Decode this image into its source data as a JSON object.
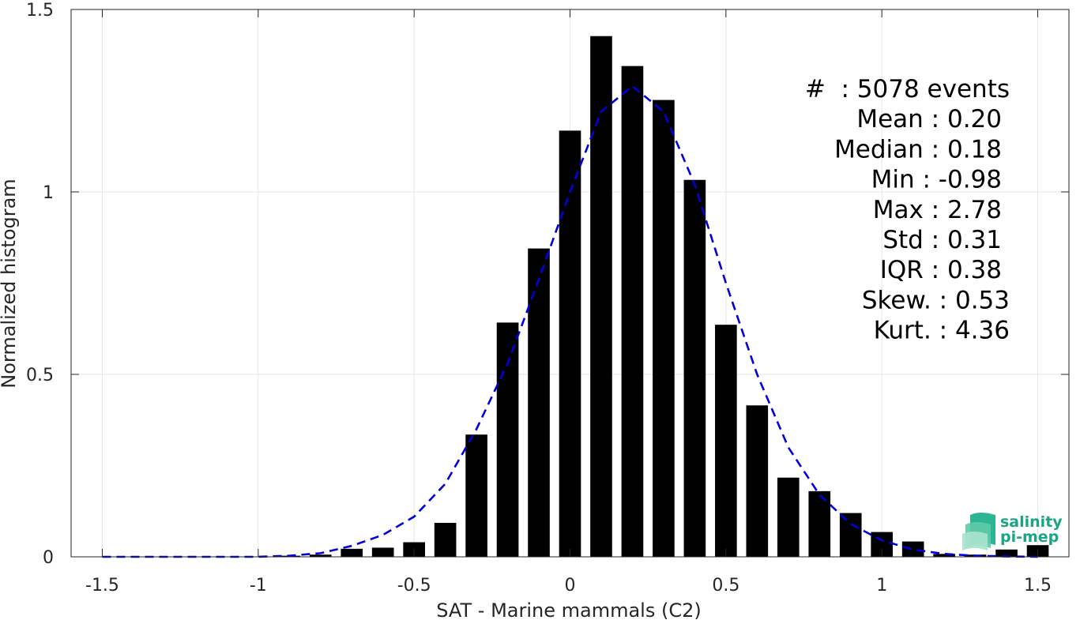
{
  "chart_data": {
    "type": "bar",
    "xlabel": "SAT - Marine mammals (C2)",
    "ylabel": "Normalized histogram",
    "xlim": [
      -1.6,
      1.6
    ],
    "ylim": [
      0,
      1.5
    ],
    "grid": true,
    "x_ticks": [
      -1.5,
      -1,
      -0.5,
      0,
      0.5,
      1,
      1.5
    ],
    "x_tick_labels": [
      "-1.5",
      "-1",
      "-0.5",
      "0",
      "0.5",
      "1",
      "1.5"
    ],
    "y_ticks": [
      0,
      0.5,
      1,
      1.5
    ],
    "y_tick_labels": [
      "0",
      "0.5",
      "1",
      "1.5"
    ],
    "bar_width": 0.07,
    "bar_color": "#000000",
    "bins": {
      "x": [
        -0.9,
        -0.8,
        -0.7,
        -0.6,
        -0.5,
        -0.4,
        -0.3,
        -0.2,
        -0.1,
        0.0,
        0.1,
        0.2,
        0.3,
        0.4,
        0.5,
        0.6,
        0.7,
        0.8,
        0.9,
        1.0,
        1.1,
        1.2,
        1.3,
        1.4,
        1.5
      ],
      "values": [
        0.003,
        0.006,
        0.022,
        0.025,
        0.04,
        0.093,
        0.335,
        0.642,
        0.845,
        1.168,
        1.427,
        1.345,
        1.252,
        1.033,
        0.636,
        0.415,
        0.217,
        0.18,
        0.12,
        0.068,
        0.042,
        0.008,
        0.006,
        0.02,
        0.032
      ]
    },
    "fit_curve": {
      "style": "dashed",
      "color": "#0000dd",
      "x": [
        -1.5,
        -1.4,
        -1.3,
        -1.2,
        -1.1,
        -1.0,
        -0.9,
        -0.8,
        -0.7,
        -0.6,
        -0.5,
        -0.4,
        -0.3,
        -0.2,
        -0.1,
        0.0,
        0.1,
        0.2,
        0.3,
        0.4,
        0.5,
        0.6,
        0.7,
        0.8,
        0.9,
        1.0,
        1.1,
        1.2,
        1.3,
        1.4,
        1.5
      ],
      "y": [
        0.0,
        0.0,
        0.0,
        0.0,
        0.0,
        0.0,
        0.003,
        0.01,
        0.03,
        0.06,
        0.11,
        0.2,
        0.35,
        0.53,
        0.76,
        1.0,
        1.22,
        1.29,
        1.22,
        1.02,
        0.75,
        0.5,
        0.3,
        0.17,
        0.09,
        0.045,
        0.02,
        0.008,
        0.003,
        0.001,
        0.0
      ]
    },
    "stats_lines": [
      "#  : 5078 events",
      "Mean : 0.20",
      "Median : 0.18",
      "Min : -0.98",
      "Max : 2.78",
      "Std : 0.31",
      "IQR : 0.38",
      "Skew. : 0.53",
      "Kurt. : 4.36"
    ]
  },
  "logo": {
    "line1": "salinity",
    "line2": "pi-mep",
    "color": "#1aa584"
  }
}
